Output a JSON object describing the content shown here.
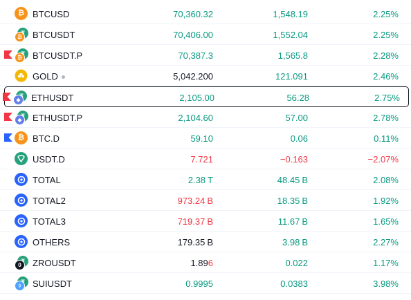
{
  "colors": {
    "up": "#089981",
    "down": "#f23645",
    "text": "#131722",
    "flag_red": "#f23645",
    "flag_blue": "#2962ff"
  },
  "rows": [
    {
      "symbol": "BTCUSD",
      "icon": "bitcoin-icon",
      "last": "70,360.32",
      "chg": "1,548.19",
      "chg_pct": "2.25%"
    },
    {
      "symbol": "BTCUSDT",
      "icon": "btc-usdt-icon",
      "last": "70,406.00",
      "chg": "1,552.04",
      "chg_pct": "2.25%"
    },
    {
      "symbol": "BTCUSDT.P",
      "icon": "btc-usdt-icon",
      "last": "70,387.3",
      "chg": "1,565.8",
      "chg_pct": "2.28%"
    },
    {
      "symbol": "GOLD",
      "icon": "gold-icon",
      "last": "5,042.200",
      "chg": "121.091",
      "chg_pct": "2.46%"
    },
    {
      "symbol": "ETHUSDT",
      "icon": "eth-usdt-icon",
      "last": "2,105.00",
      "chg": "56.28",
      "chg_pct": "2.75%"
    },
    {
      "symbol": "ETHUSDT.P",
      "icon": "eth-usdt-icon",
      "last": "2,104.60",
      "chg": "57.00",
      "chg_pct": "2.78%"
    },
    {
      "symbol": "BTC.D",
      "icon": "bitcoin-icon",
      "last": "59.10",
      "chg": "0.06",
      "chg_pct": "0.11%"
    },
    {
      "symbol": "USDT.D",
      "icon": "tether-icon",
      "last": "7.721",
      "chg": "−0.163",
      "chg_pct": "−2.07%"
    },
    {
      "symbol": "TOTAL",
      "icon": "total-icon",
      "last": "2.38",
      "last_unit": "T",
      "chg": "48.45",
      "chg_unit": "B",
      "chg_pct": "2.08%"
    },
    {
      "symbol": "TOTAL2",
      "icon": "total-icon",
      "last": "973.24",
      "last_unit": "B",
      "chg": "18.35",
      "chg_unit": "B",
      "chg_pct": "1.92%"
    },
    {
      "symbol": "TOTAL3",
      "icon": "total-icon",
      "last": "719.37",
      "last_unit": "B",
      "chg": "11.67",
      "chg_unit": "B",
      "chg_pct": "1.65%"
    },
    {
      "symbol": "OTHERS",
      "icon": "total-icon",
      "last": "179.35",
      "last_unit": "B",
      "chg": "3.98",
      "chg_unit": "B",
      "chg_pct": "2.27%"
    },
    {
      "symbol": "ZROUSDT",
      "icon": "zro-icon",
      "last_a": "1.89",
      "last_b": "6",
      "chg": "0.022",
      "chg_pct": "1.17%"
    },
    {
      "symbol": "SUIUSDT",
      "icon": "sui-icon",
      "last": "0.9995",
      "chg": "0.0383",
      "chg_pct": "3.98%"
    }
  ]
}
